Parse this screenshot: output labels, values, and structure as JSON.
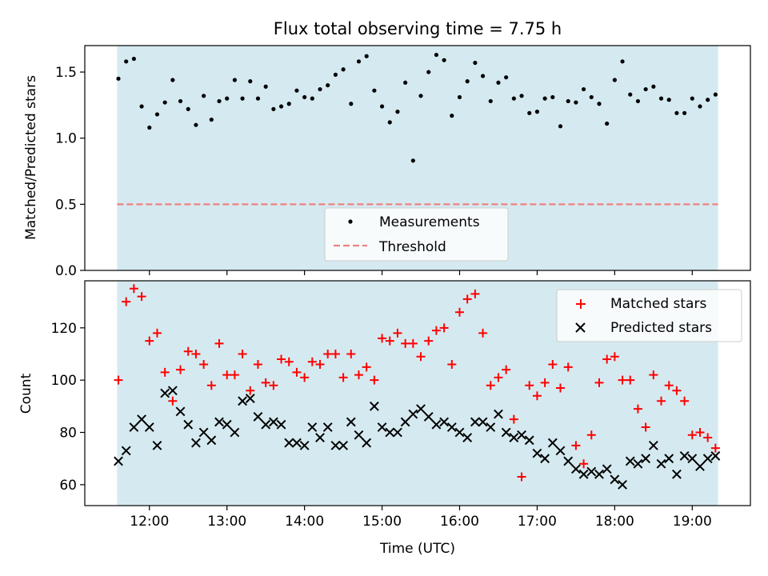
{
  "figure": {
    "title": "Flux total observing time = 7.75 h",
    "xlabel": "Time (UTC)"
  },
  "colors": {
    "background_band": "#d5eaf0",
    "measurement": "#000000",
    "threshold": "#f08080",
    "matched": "#ff0000",
    "predicted": "#000000"
  },
  "chart_data": [
    {
      "type": "scatter",
      "ylabel": "Matched/Predicted stars",
      "xlim": [
        "11:10",
        "19:45"
      ],
      "ylim": [
        0,
        1.7
      ],
      "xticks": [
        "12:00",
        "13:00",
        "14:00",
        "15:00",
        "16:00",
        "17:00",
        "18:00",
        "19:00"
      ],
      "yticks": [
        "0.0",
        "0.5",
        "1.0",
        "1.5"
      ],
      "shaded_span": [
        "11:35",
        "19:20"
      ],
      "grid": false,
      "legend": {
        "placement": "bottom-center",
        "entries": [
          "Measurements",
          "Threshold"
        ]
      },
      "threshold": {
        "name": "Threshold",
        "y": 0.5
      },
      "series": [
        {
          "name": "Measurements",
          "x": [
            "11:36",
            "11:42",
            "11:48",
            "11:54",
            "12:00",
            "12:06",
            "12:12",
            "12:18",
            "12:24",
            "12:30",
            "12:36",
            "12:42",
            "12:48",
            "12:54",
            "13:00",
            "13:06",
            "13:12",
            "13:18",
            "13:24",
            "13:30",
            "13:36",
            "13:42",
            "13:48",
            "13:54",
            "14:00",
            "14:06",
            "14:12",
            "14:18",
            "14:24",
            "14:30",
            "14:36",
            "14:42",
            "14:48",
            "14:54",
            "15:00",
            "15:06",
            "15:12",
            "15:18",
            "15:24",
            "15:30",
            "15:36",
            "15:42",
            "15:48",
            "15:54",
            "16:00",
            "16:06",
            "16:12",
            "16:18",
            "16:24",
            "16:30",
            "16:36",
            "16:42",
            "16:48",
            "16:54",
            "17:00",
            "17:06",
            "17:12",
            "17:18",
            "17:24",
            "17:30",
            "17:36",
            "17:42",
            "17:48",
            "17:54",
            "18:00",
            "18:06",
            "18:12",
            "18:18",
            "18:24",
            "18:30",
            "18:36",
            "18:42",
            "18:48",
            "18:54",
            "19:00",
            "19:06",
            "19:12",
            "19:18"
          ],
          "y": [
            1.45,
            1.58,
            1.6,
            1.24,
            1.08,
            1.18,
            1.27,
            1.44,
            1.28,
            1.22,
            1.1,
            1.32,
            1.14,
            1.28,
            1.3,
            1.44,
            1.3,
            1.43,
            1.3,
            1.39,
            1.22,
            1.24,
            1.26,
            1.36,
            1.31,
            1.3,
            1.37,
            1.4,
            1.48,
            1.52,
            1.26,
            1.58,
            1.62,
            1.36,
            1.24,
            1.12,
            1.2,
            1.42,
            0.83,
            1.32,
            1.5,
            1.63,
            1.59,
            1.17,
            1.31,
            1.43,
            1.57,
            1.47,
            1.28,
            1.42,
            1.46,
            1.3,
            1.32,
            1.19,
            1.2,
            1.3,
            1.31,
            1.09,
            1.28,
            1.27,
            1.37,
            1.31,
            1.26,
            1.11,
            1.44,
            1.58,
            1.33,
            1.28,
            1.37,
            1.39,
            1.3,
            1.29,
            1.19,
            1.19,
            1.3,
            1.24,
            1.29,
            1.33
          ]
        }
      ]
    },
    {
      "type": "scatter",
      "ylabel": "Count",
      "xlabel": "Time (UTC)",
      "xlim": [
        "11:10",
        "19:45"
      ],
      "ylim": [
        52,
        138
      ],
      "xticks": [
        "12:00",
        "13:00",
        "14:00",
        "15:00",
        "16:00",
        "17:00",
        "18:00",
        "19:00"
      ],
      "yticks": [
        "60",
        "80",
        "100",
        "120"
      ],
      "shaded_span": [
        "11:35",
        "19:20"
      ],
      "grid": false,
      "legend": {
        "placement": "top-right",
        "entries": [
          "Matched stars",
          "Predicted stars"
        ]
      },
      "series": [
        {
          "name": "Matched stars",
          "marker": "+",
          "x": [
            "11:36",
            "11:42",
            "11:48",
            "11:54",
            "12:00",
            "12:06",
            "12:12",
            "12:18",
            "12:24",
            "12:30",
            "12:36",
            "12:42",
            "12:48",
            "12:54",
            "13:00",
            "13:06",
            "13:12",
            "13:18",
            "13:24",
            "13:30",
            "13:36",
            "13:42",
            "13:48",
            "13:54",
            "14:00",
            "14:06",
            "14:12",
            "14:18",
            "14:24",
            "14:30",
            "14:36",
            "14:42",
            "14:48",
            "14:54",
            "15:00",
            "15:06",
            "15:12",
            "15:18",
            "15:24",
            "15:30",
            "15:36",
            "15:42",
            "15:48",
            "15:54",
            "16:00",
            "16:06",
            "16:12",
            "16:18",
            "16:24",
            "16:30",
            "16:36",
            "16:42",
            "16:48",
            "16:54",
            "17:00",
            "17:06",
            "17:12",
            "17:18",
            "17:24",
            "17:30",
            "17:36",
            "17:42",
            "17:48",
            "17:54",
            "18:00",
            "18:06",
            "18:12",
            "18:18",
            "18:24",
            "18:30",
            "18:36",
            "18:42",
            "18:48",
            "18:54",
            "19:00",
            "19:06",
            "19:12",
            "19:18"
          ],
          "y": [
            100,
            130,
            135,
            132,
            115,
            118,
            103,
            92,
            104,
            111,
            110,
            106,
            98,
            114,
            102,
            102,
            110,
            96,
            106,
            99,
            98,
            108,
            107,
            103,
            101,
            107,
            106,
            110,
            110,
            101,
            110,
            102,
            105,
            100,
            116,
            115,
            118,
            114,
            114,
            109,
            115,
            119,
            120,
            106,
            126,
            131,
            133,
            118,
            98,
            101,
            104,
            85,
            63,
            98,
            94,
            99,
            106,
            97,
            105,
            75,
            68,
            79,
            99,
            108,
            109,
            100,
            100,
            89,
            82,
            102,
            92,
            98,
            96,
            92,
            79,
            80,
            78,
            74
          ]
        },
        {
          "name": "Predicted stars",
          "marker": "x",
          "x": [
            "11:36",
            "11:42",
            "11:48",
            "11:54",
            "12:00",
            "12:06",
            "12:12",
            "12:18",
            "12:24",
            "12:30",
            "12:36",
            "12:42",
            "12:48",
            "12:54",
            "13:00",
            "13:06",
            "13:12",
            "13:18",
            "13:24",
            "13:30",
            "13:36",
            "13:42",
            "13:48",
            "13:54",
            "14:00",
            "14:06",
            "14:12",
            "14:18",
            "14:24",
            "14:30",
            "14:36",
            "14:42",
            "14:48",
            "14:54",
            "15:00",
            "15:06",
            "15:12",
            "15:18",
            "15:24",
            "15:30",
            "15:36",
            "15:42",
            "15:48",
            "15:54",
            "16:00",
            "16:06",
            "16:12",
            "16:18",
            "16:24",
            "16:30",
            "16:36",
            "16:42",
            "16:48",
            "16:54",
            "17:00",
            "17:06",
            "17:12",
            "17:18",
            "17:24",
            "17:30",
            "17:36",
            "17:42",
            "17:48",
            "17:54",
            "18:00",
            "18:06",
            "18:12",
            "18:18",
            "18:24",
            "18:30",
            "18:36",
            "18:42",
            "18:48",
            "18:54",
            "19:00",
            "19:06",
            "19:12",
            "19:18"
          ],
          "y": [
            69,
            73,
            82,
            85,
            82,
            75,
            95,
            96,
            88,
            83,
            76,
            80,
            77,
            84,
            83,
            80,
            92,
            93,
            86,
            83,
            84,
            83,
            76,
            76,
            75,
            82,
            78,
            82,
            75,
            75,
            84,
            79,
            76,
            90,
            82,
            80,
            80,
            84,
            87,
            89,
            86,
            83,
            84,
            82,
            80,
            78,
            84,
            84,
            82,
            87,
            80,
            78,
            79,
            77,
            72,
            70,
            76,
            73,
            69,
            66,
            64,
            65,
            64,
            66,
            62,
            60,
            69,
            68,
            70,
            75,
            68,
            70,
            64,
            71,
            70,
            67,
            70,
            71
          ]
        }
      ]
    }
  ]
}
